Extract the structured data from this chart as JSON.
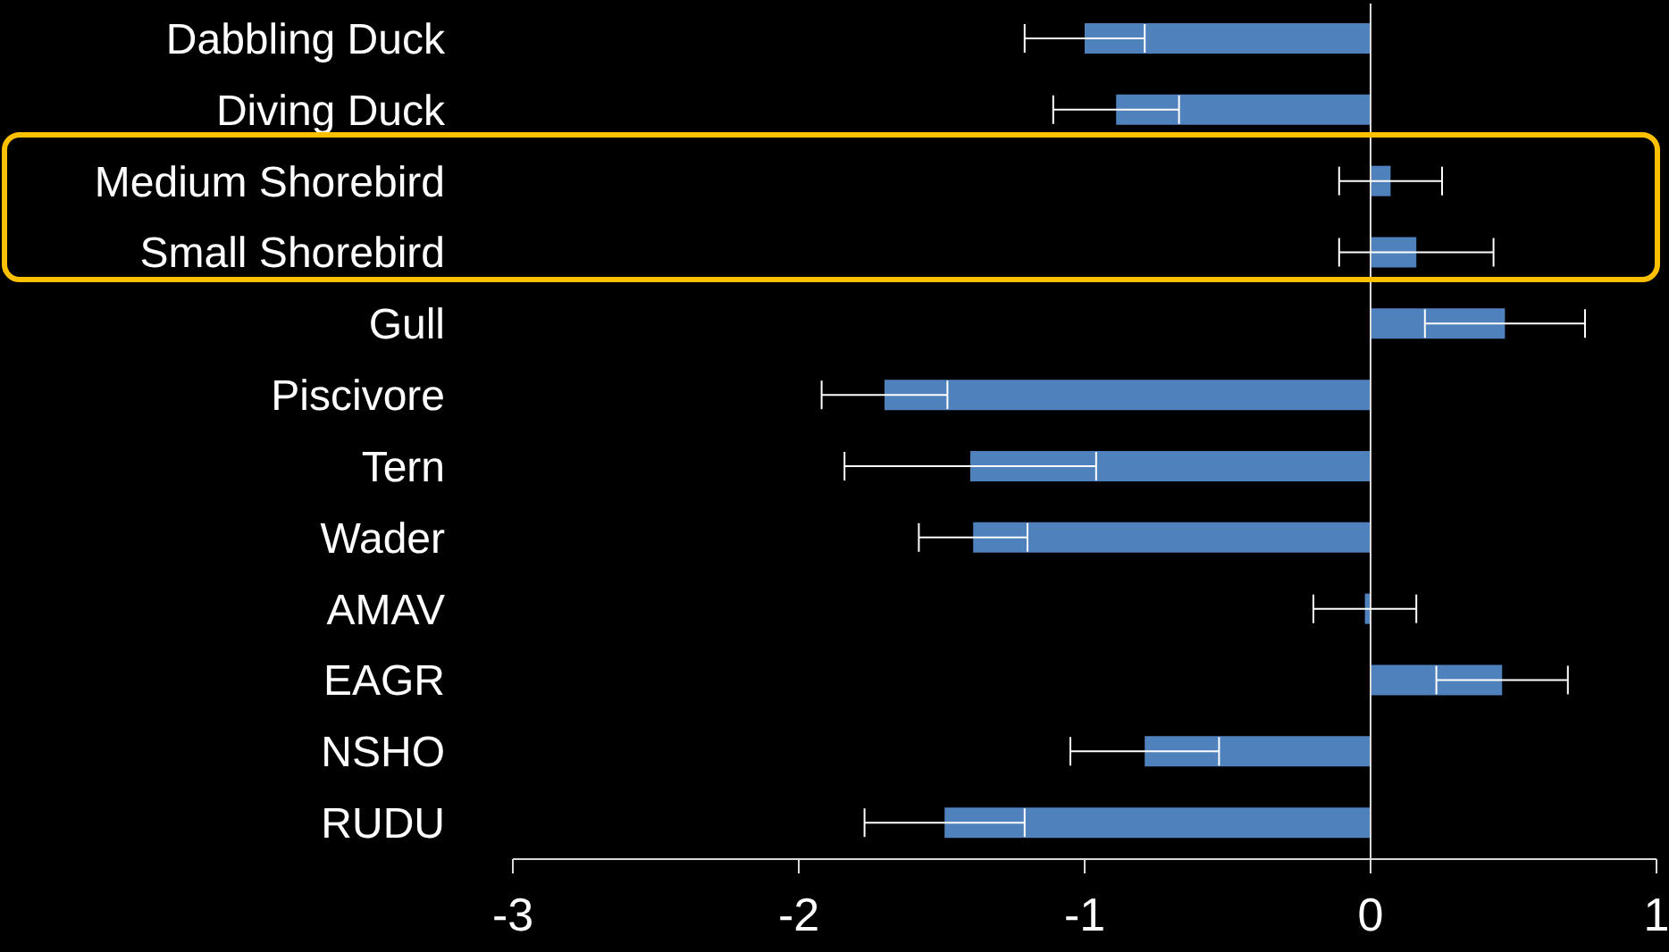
{
  "chart_data": {
    "type": "bar",
    "orientation": "horizontal",
    "categories": [
      "Dabbling Duck",
      "Diving Duck",
      "Medium Shorebird",
      "Small Shorebird",
      "Gull",
      "Piscivore",
      "Tern",
      "Wader",
      "AMAV",
      "EAGR",
      "NSHO",
      "RUDU"
    ],
    "values": [
      -1.0,
      -0.89,
      0.07,
      0.16,
      0.47,
      -1.7,
      -1.4,
      -1.39,
      -0.02,
      0.46,
      -0.79,
      -1.49
    ],
    "errors": [
      0.21,
      0.22,
      0.18,
      0.27,
      0.28,
      0.22,
      0.44,
      0.19,
      0.18,
      0.23,
      0.26,
      0.28
    ],
    "color": "#4f81bd",
    "xlim": [
      -3,
      1
    ],
    "xticks": [
      -3,
      -2,
      -1,
      0,
      1
    ],
    "legend": false
  }
}
